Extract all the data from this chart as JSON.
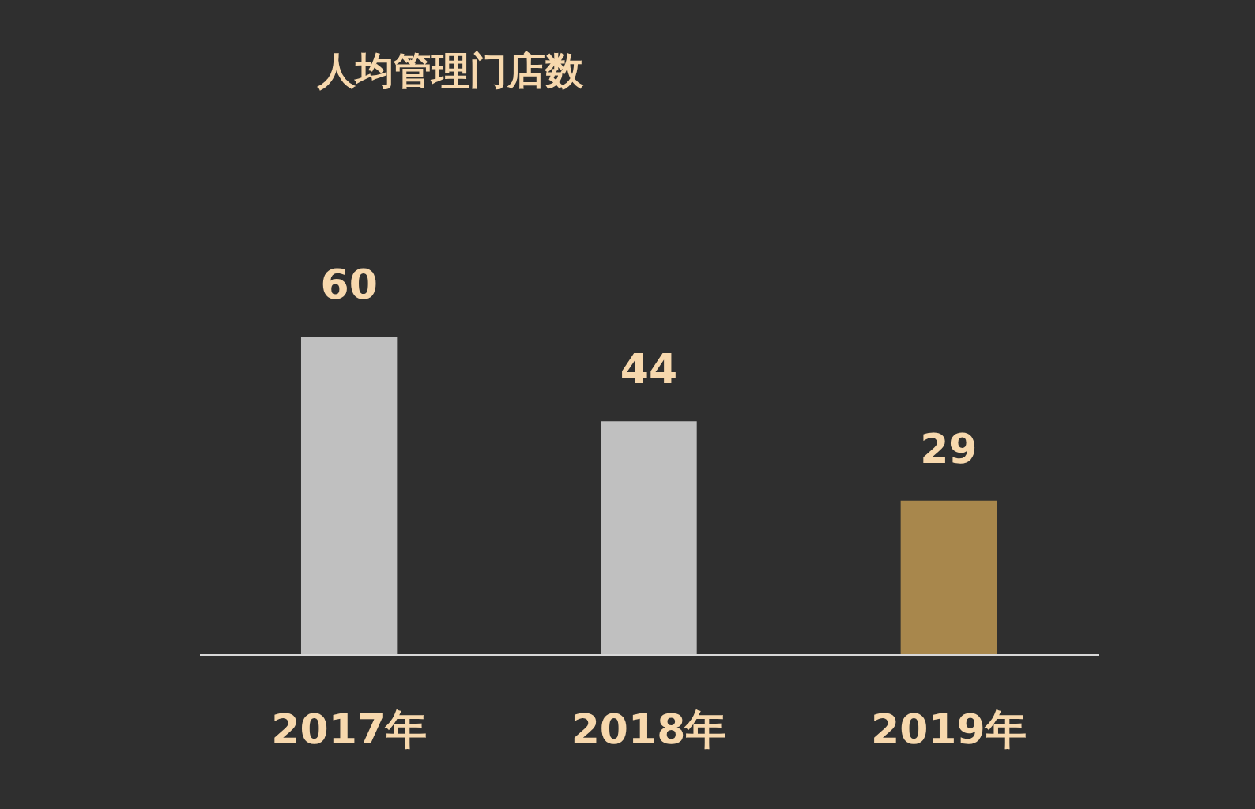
{
  "chart_data": {
    "type": "bar",
    "title": "人均管理门店数",
    "categories": [
      "2017年",
      "2018年",
      "2019年"
    ],
    "values": [
      60,
      44,
      29
    ],
    "colors": [
      "#c0c0c0",
      "#c0c0c0",
      "#a8874c"
    ],
    "data_labels": true,
    "grid": false
  }
}
